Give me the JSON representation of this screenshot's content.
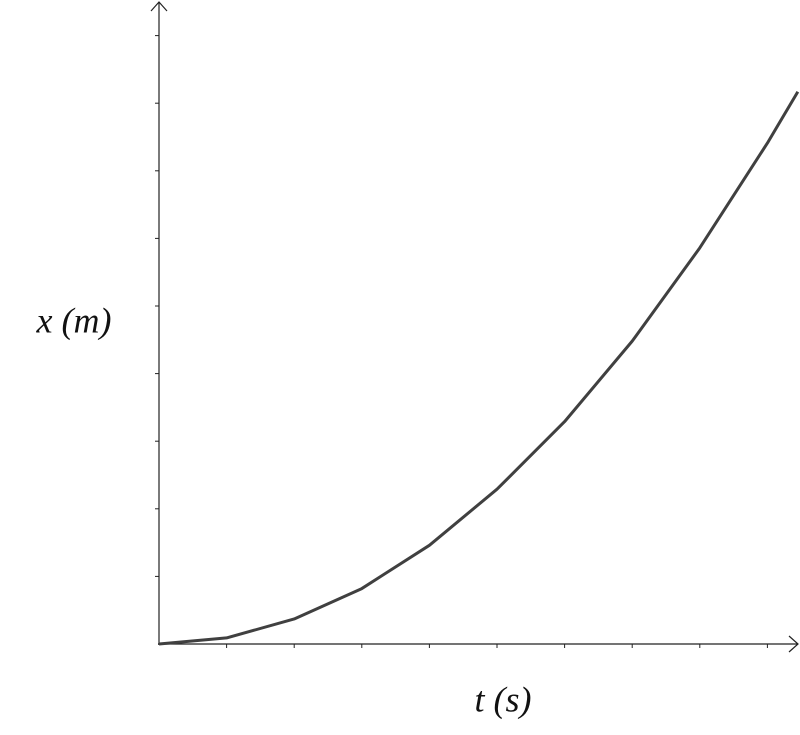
{
  "chart_data": {
    "type": "line",
    "x_label": "t (s)",
    "y_label": "x (m)",
    "x": [
      0,
      1,
      2,
      3,
      4,
      5,
      6,
      7,
      8,
      9,
      9.45
    ],
    "series": [
      {
        "color": "#404040",
        "values": [
          0,
          0.09,
          0.37,
          0.82,
          1.46,
          2.29,
          3.29,
          4.48,
          5.86,
          7.41,
          8.17
        ]
      }
    ],
    "xlim": [
      0,
      9.45
    ],
    "ylim": [
      0,
      9.5
    ],
    "xticks": [
      1,
      2,
      3,
      4,
      5,
      6,
      7,
      8,
      9
    ],
    "yticks": [
      1,
      2,
      3,
      4,
      5,
      6,
      7,
      8,
      9
    ]
  }
}
